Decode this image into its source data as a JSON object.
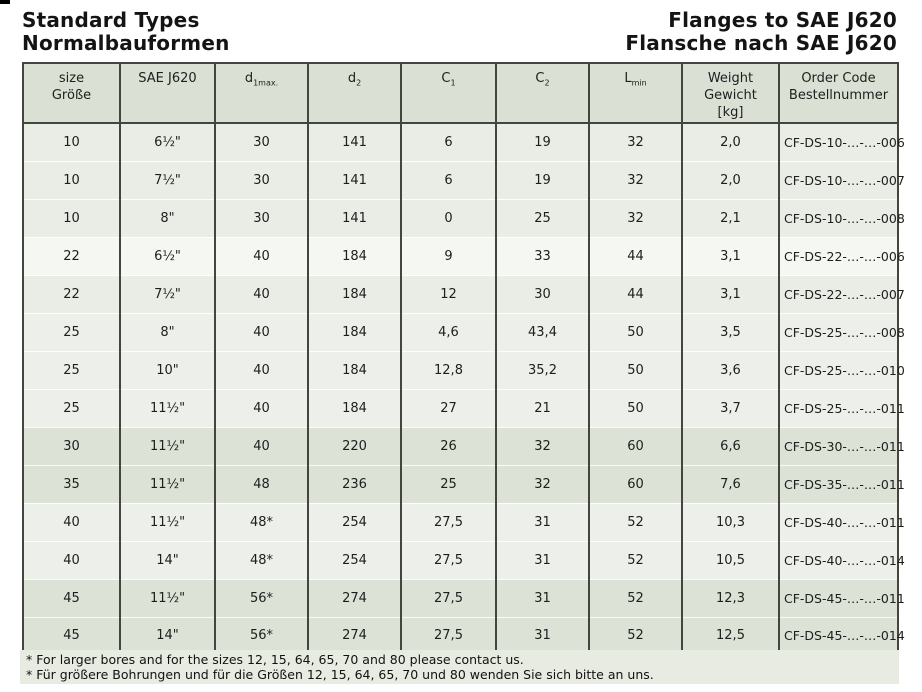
{
  "header": {
    "left": [
      "Standard Types",
      "Normalbauformen"
    ],
    "right": [
      "Flanges to SAE J620",
      "Flansche nach SAE J620"
    ]
  },
  "table": {
    "columns": [
      {
        "id": "size",
        "label_lines": [
          "size",
          "Größe"
        ]
      },
      {
        "id": "sae",
        "label_lines": [
          "SAE J620"
        ]
      },
      {
        "id": "d1max",
        "base": "d",
        "sub": "1max."
      },
      {
        "id": "d2",
        "base": "d",
        "sub": "2"
      },
      {
        "id": "c1",
        "base": "C",
        "sub": "1"
      },
      {
        "id": "c2",
        "base": "C",
        "sub": "2"
      },
      {
        "id": "lmin",
        "base": "L",
        "sub": "min"
      },
      {
        "id": "weight",
        "label_lines": [
          "Weight",
          "Gewicht",
          "[kg]"
        ]
      },
      {
        "id": "order",
        "label_lines": [
          "Order Code",
          "Bestellnummer"
        ]
      }
    ],
    "rows": [
      {
        "shade": "a",
        "cells": [
          "10",
          "6½\"",
          "30",
          "141",
          "6",
          "19",
          "32",
          "2,0",
          "CF-DS-10-…-…-006"
        ]
      },
      {
        "shade": "a",
        "cells": [
          "10",
          "7½\"",
          "30",
          "141",
          "6",
          "19",
          "32",
          "2,0",
          "CF-DS-10-…-…-007"
        ]
      },
      {
        "shade": "a",
        "cells": [
          "10",
          "8\"",
          "30",
          "141",
          "0",
          "25",
          "32",
          "2,1",
          "CF-DS-10-…-…-008"
        ]
      },
      {
        "shade": "b",
        "cells": [
          "22",
          "6½\"",
          "40",
          "184",
          "9",
          "33",
          "44",
          "3,1",
          "CF-DS-22-…-…-006"
        ]
      },
      {
        "shade": "a",
        "cells": [
          "22",
          "7½\"",
          "40",
          "184",
          "12",
          "30",
          "44",
          "3,1",
          "CF-DS-22-…-…-007"
        ]
      },
      {
        "shade": "c",
        "cells": [
          "25",
          "8\"",
          "40",
          "184",
          "4,6",
          "43,4",
          "50",
          "3,5",
          "CF-DS-25-…-…-008"
        ]
      },
      {
        "shade": "c",
        "cells": [
          "25",
          "10\"",
          "40",
          "184",
          "12,8",
          "35,2",
          "50",
          "3,6",
          "CF-DS-25-…-…-010"
        ]
      },
      {
        "shade": "c",
        "cells": [
          "25",
          "11½\"",
          "40",
          "184",
          "27",
          "21",
          "50",
          "3,7",
          "CF-DS-25-…-…-011"
        ]
      },
      {
        "shade": "d",
        "cells": [
          "30",
          "11½\"",
          "40",
          "220",
          "26",
          "32",
          "60",
          "6,6",
          "CF-DS-30-…-…-011"
        ]
      },
      {
        "shade": "d",
        "cells": [
          "35",
          "11½\"",
          "48",
          "236",
          "25",
          "32",
          "60",
          "7,6",
          "CF-DS-35-…-…-011"
        ]
      },
      {
        "shade": "c",
        "cells": [
          "40",
          "11½\"",
          "48*",
          "254",
          "27,5",
          "31",
          "52",
          "10,3",
          "CF-DS-40-…-…-011"
        ]
      },
      {
        "shade": "c",
        "cells": [
          "40",
          "14\"",
          "48*",
          "254",
          "27,5",
          "31",
          "52",
          "10,5",
          "CF-DS-40-…-…-014"
        ]
      },
      {
        "shade": "d",
        "cells": [
          "45",
          "11½\"",
          "56*",
          "274",
          "27,5",
          "31",
          "52",
          "12,3",
          "CF-DS-45-…-…-011"
        ]
      },
      {
        "shade": "d",
        "cells": [
          "45",
          "14\"",
          "56*",
          "274",
          "27,5",
          "31",
          "52",
          "12,5",
          "CF-DS-45-…-…-014"
        ]
      }
    ]
  },
  "footnotes": [
    "* For larger bores and for the sizes 12, 15, 64, 65, 70 and 80 please contact us.",
    "* Für größere Bohrungen und für die Größen 12, 15, 64, 65, 70 und 80 wenden Sie sich bitte an uns."
  ],
  "colors": {
    "border_dark": "#43463f",
    "header_bg": "#dbe0d4",
    "row_shade_a": "#e9ede6",
    "row_shade_b": "#f5f7f2",
    "row_shade_c": "#edf0ea",
    "row_shade_d": "#dce2d5",
    "footnote_bg": "#e7ebe2"
  }
}
